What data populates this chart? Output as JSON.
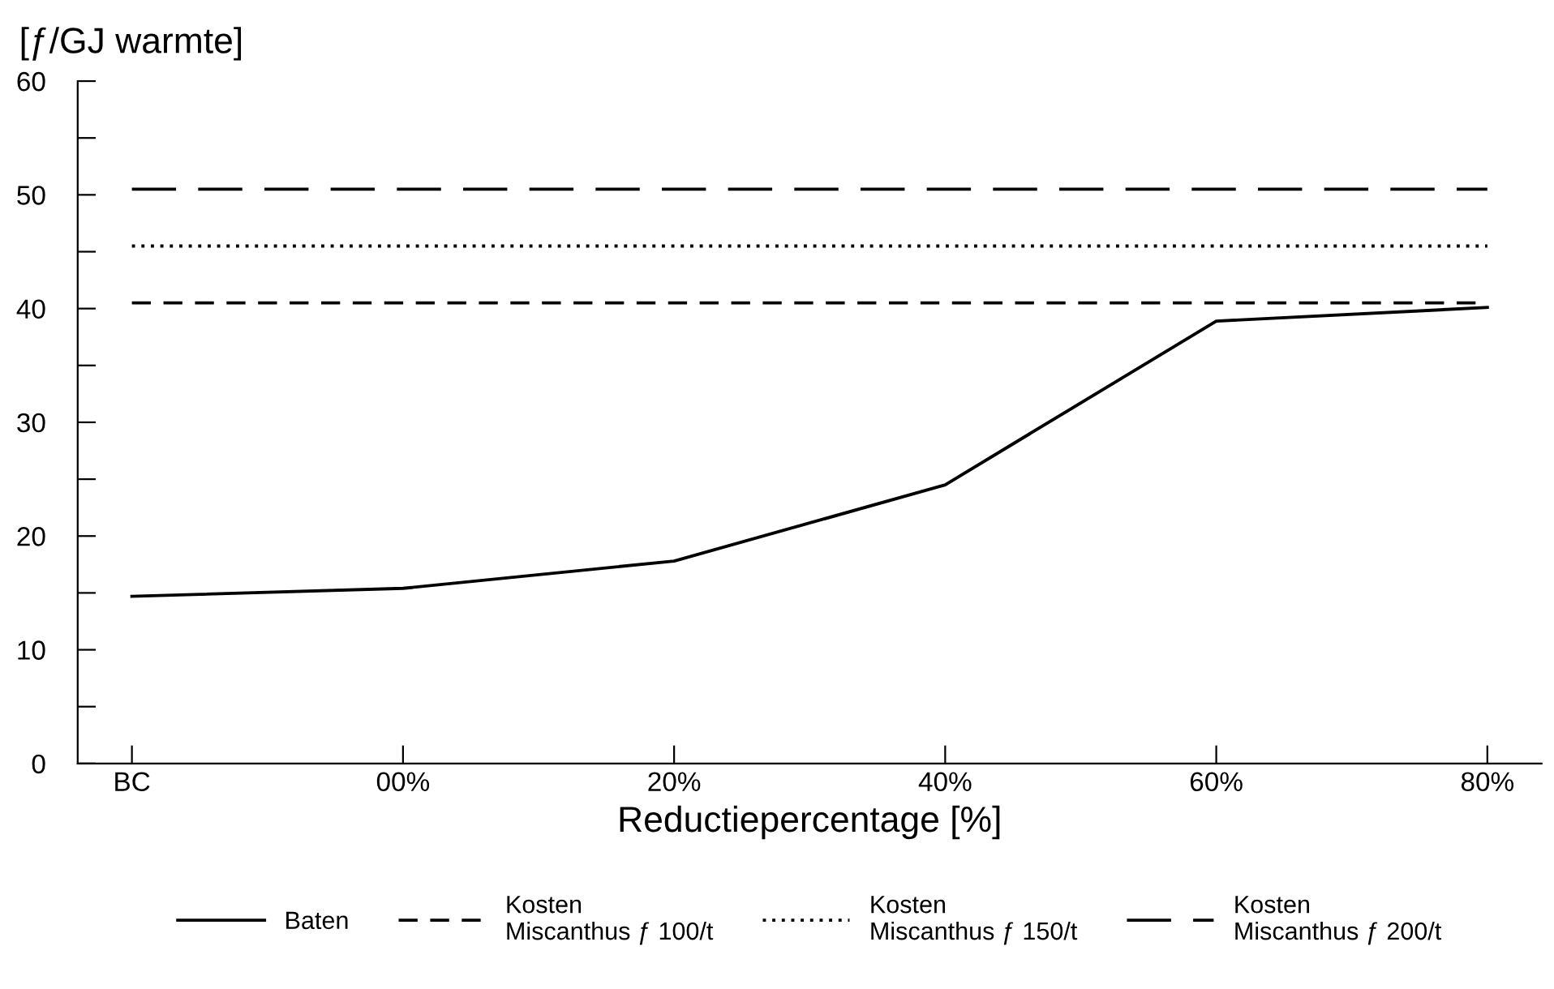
{
  "chart_data": {
    "type": "line",
    "ylabel": "[ƒ/GJ warmte]",
    "xlabel": "Reductiepercentage [%]",
    "categories": [
      "BC",
      "00%",
      "20%",
      "40%",
      "60%",
      "80%"
    ],
    "series": [
      {
        "name": "Baten",
        "color": "#000000",
        "line_style": "solid",
        "values": [
          14.7,
          15.4,
          17.8,
          24.5,
          38.9,
          40.1
        ]
      },
      {
        "name": "Kosten\nMiscanthus ƒ 100/t",
        "color": "#000000",
        "line_style": "dashed",
        "values": [
          40.5,
          40.5,
          40.5,
          40.5,
          40.5,
          40.5
        ]
      },
      {
        "name": "Kosten\nMiscanthus ƒ 150/t",
        "color": "#000000",
        "line_style": "dotted",
        "values": [
          45.5,
          45.5,
          45.5,
          45.5,
          45.5,
          45.5
        ]
      },
      {
        "name": "Kosten\nMiscanthus ƒ 200/t",
        "color": "#000000",
        "line_style": "longdash",
        "values": [
          50.5,
          50.5,
          50.5,
          50.5,
          50.5,
          50.5
        ]
      }
    ],
    "ylim": [
      0,
      60
    ],
    "yticks": [
      0,
      {
        "value": 5,
        "label": null
      },
      10,
      {
        "value": 15,
        "label": null
      },
      20,
      {
        "value": 25,
        "label": null
      },
      30,
      {
        "value": 35,
        "label": null
      },
      40,
      {
        "value": 45,
        "label": null
      },
      50,
      {
        "value": 55,
        "label": null
      },
      60
    ],
    "grid": false,
    "legend": "bottom",
    "marker": "none"
  }
}
